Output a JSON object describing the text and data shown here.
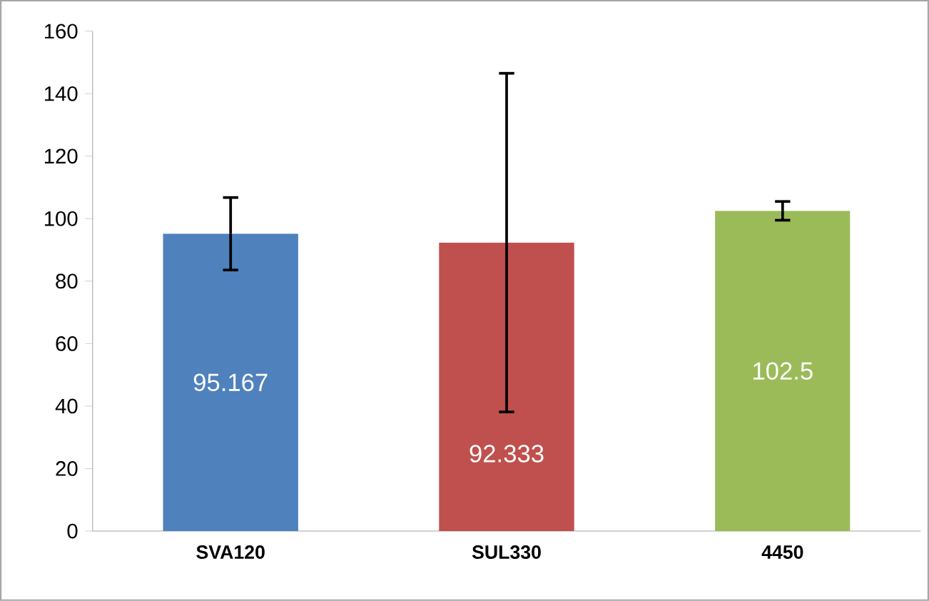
{
  "chart_data": {
    "type": "bar",
    "categories": [
      "SVA120",
      "SUL330",
      "4450"
    ],
    "values": [
      95.167,
      92.333,
      102.5
    ],
    "colors": [
      "#4f81bd",
      "#c0504d",
      "#9bbb59"
    ],
    "errors": [
      11.6,
      54.2,
      3
    ],
    "ylim": [
      0,
      160
    ],
    "yticks": [
      0,
      20,
      40,
      60,
      80,
      100,
      120,
      140,
      160
    ],
    "data_labels": true
  }
}
